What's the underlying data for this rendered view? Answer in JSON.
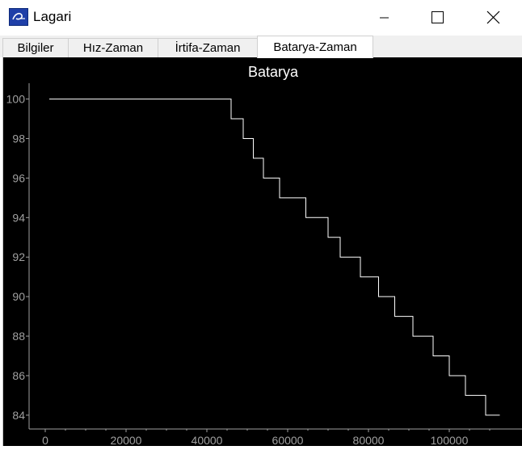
{
  "window": {
    "title": "Lagari"
  },
  "tabs": [
    {
      "label": "Bilgiler"
    },
    {
      "label": "Hız-Zaman"
    },
    {
      "label": "İrtifa-Zaman"
    },
    {
      "label": "Batarya-Zaman"
    }
  ],
  "active_tab": 3,
  "colors": {
    "plot_bg": "#000000",
    "line": "#ffffff",
    "axis_text": "#a0a0a0",
    "title_text": "#ffffff"
  },
  "icons": [
    "app-logo-icon",
    "minimize-icon",
    "maximize-icon",
    "close-icon"
  ],
  "chart_data": {
    "type": "line",
    "title": "Batarya",
    "xlabel": "",
    "ylabel": "",
    "xlim": [
      -4000,
      118000
    ],
    "ylim": [
      83.3,
      100.8
    ],
    "x_ticks": [
      "0",
      "20000",
      "40000",
      "60000",
      "80000",
      "100000"
    ],
    "x_tick_values": [
      0,
      20000,
      40000,
      60000,
      80000,
      100000
    ],
    "y_ticks": [
      "84",
      "86",
      "88",
      "90",
      "92",
      "94",
      "96",
      "98",
      "100"
    ],
    "y_tick_values": [
      84,
      86,
      88,
      90,
      92,
      94,
      96,
      98,
      100
    ],
    "grid": false,
    "series": [
      {
        "x": [
          1000,
          46000,
          46000,
          49000,
          49000,
          51500,
          51500,
          54000,
          54000,
          58000,
          58000,
          64500,
          64500,
          70000,
          70000,
          73000,
          73000,
          78000,
          78000,
          82500,
          82500,
          86500,
          86500,
          91000,
          91000,
          96000,
          96000,
          100000,
          100000,
          104000,
          104000,
          109000,
          109000,
          112500
        ],
        "y": [
          100,
          100,
          99,
          99,
          98,
          98,
          97,
          97,
          96,
          96,
          95,
          95,
          94,
          94,
          93,
          93,
          92,
          92,
          91,
          91,
          90,
          90,
          89,
          89,
          88,
          88,
          87,
          87,
          86,
          86,
          85,
          85,
          84,
          84
        ]
      }
    ]
  }
}
